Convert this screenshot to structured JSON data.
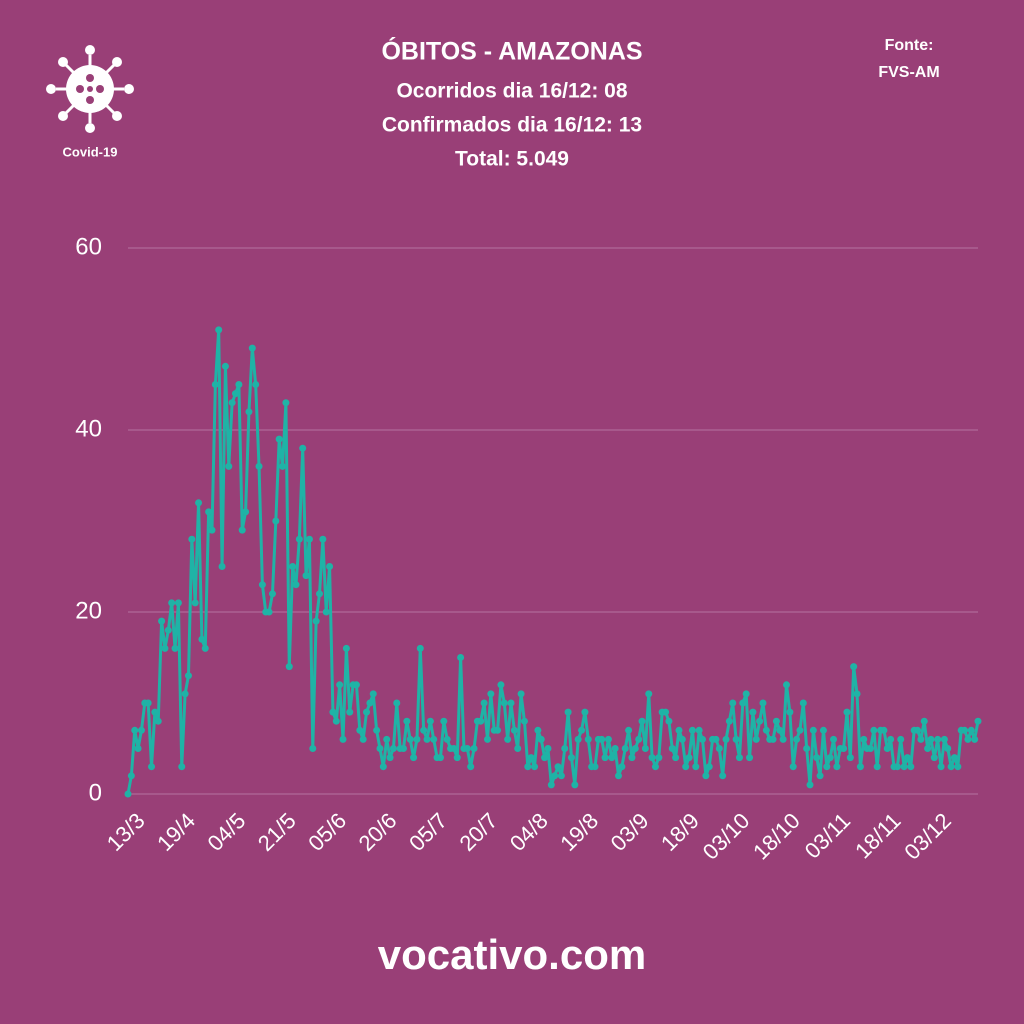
{
  "logo": {
    "label": "Covid-19"
  },
  "source": [
    "Fonte:",
    "FVS-AM"
  ],
  "footer": "vocativo.com",
  "chart_data": {
    "type": "line",
    "title": "ÓBITOS - AMAZONAS",
    "subtitles": [
      "Ocorridos dia 16/12: 08",
      "Confirmados dia 16/12: 13",
      "Total: 5.049"
    ],
    "categories": [
      "13/3",
      null,
      null,
      null,
      null,
      null,
      null,
      null,
      null,
      null,
      null,
      null,
      null,
      null,
      null,
      "19/4",
      null,
      null,
      null,
      null,
      null,
      null,
      null,
      null,
      null,
      null,
      null,
      null,
      null,
      null,
      "04/5",
      null,
      null,
      null,
      null,
      null,
      null,
      null,
      null,
      null,
      null,
      null,
      null,
      null,
      null,
      "21/5",
      null,
      null,
      null,
      null,
      null,
      null,
      null,
      null,
      null,
      null,
      null,
      null,
      null,
      null,
      "05/6",
      null,
      null,
      null,
      null,
      null,
      null,
      null,
      null,
      null,
      null,
      null,
      null,
      null,
      null,
      "20/6",
      null,
      null,
      null,
      null,
      null,
      null,
      null,
      null,
      null,
      null,
      null,
      null,
      null,
      null,
      "05/7",
      null,
      null,
      null,
      null,
      null,
      null,
      null,
      null,
      null,
      null,
      null,
      null,
      null,
      null,
      "20/7",
      null,
      null,
      null,
      null,
      null,
      null,
      null,
      null,
      null,
      null,
      null,
      null,
      null,
      null,
      "04/8",
      null,
      null,
      null,
      null,
      null,
      null,
      null,
      null,
      null,
      null,
      null,
      null,
      null,
      null,
      "19/8",
      null,
      null,
      null,
      null,
      null,
      null,
      null,
      null,
      null,
      null,
      null,
      null,
      null,
      null,
      "03/9",
      null,
      null,
      null,
      null,
      null,
      null,
      null,
      null,
      null,
      null,
      null,
      null,
      null,
      null,
      "18/9",
      null,
      null,
      null,
      null,
      null,
      null,
      null,
      null,
      null,
      null,
      null,
      null,
      null,
      null,
      "03/10",
      null,
      null,
      null,
      null,
      null,
      null,
      null,
      null,
      null,
      null,
      null,
      null,
      null,
      null,
      "18/10",
      null,
      null,
      null,
      null,
      null,
      null,
      null,
      null,
      null,
      null,
      null,
      null,
      null,
      null,
      "03/11",
      null,
      null,
      null,
      null,
      null,
      null,
      null,
      null,
      null,
      null,
      null,
      null,
      null,
      null,
      "18/11",
      null,
      null,
      null,
      null,
      null,
      null,
      null,
      null,
      null,
      null,
      null,
      null,
      null,
      null,
      "03/12",
      null,
      null,
      null,
      null,
      null,
      null,
      null,
      null,
      null,
      null,
      null,
      null,
      null
    ],
    "values": [
      0,
      2,
      7,
      5,
      7,
      10,
      10,
      3,
      9,
      8,
      19,
      16,
      18,
      21,
      16,
      21,
      3,
      11,
      13,
      28,
      21,
      32,
      17,
      16,
      31,
      29,
      45,
      51,
      25,
      47,
      36,
      43,
      44,
      45,
      29,
      31,
      42,
      49,
      45,
      36,
      23,
      20,
      20,
      22,
      30,
      39,
      36,
      43,
      14,
      25,
      23,
      28,
      38,
      24,
      28,
      5,
      19,
      22,
      28,
      20,
      25,
      9,
      8,
      12,
      6,
      16,
      9,
      12,
      12,
      7,
      6,
      9,
      10,
      11,
      7,
      5,
      3,
      6,
      4,
      5,
      10,
      5,
      5,
      8,
      6,
      4,
      6,
      16,
      7,
      6,
      8,
      6,
      4,
      4,
      8,
      6,
      5,
      5,
      4,
      15,
      5,
      5,
      3,
      5,
      8,
      8,
      10,
      6,
      11,
      7,
      7,
      12,
      10,
      6,
      10,
      7,
      5,
      11,
      8,
      3,
      4,
      3,
      7,
      6,
      4,
      5,
      1,
      2,
      3,
      2,
      5,
      9,
      4,
      1,
      6,
      7,
      9,
      6,
      3,
      3,
      6,
      6,
      4,
      6,
      4,
      5,
      2,
      3,
      5,
      7,
      4,
      5,
      6,
      8,
      5,
      11,
      4,
      3,
      4,
      9,
      9,
      8,
      5,
      4,
      7,
      6,
      3,
      4,
      7,
      3,
      7,
      6,
      2,
      3,
      6,
      6,
      5,
      2,
      6,
      8,
      10,
      6,
      4,
      10,
      11,
      4,
      9,
      6,
      8,
      10,
      7,
      6,
      6,
      8,
      7,
      6,
      12,
      9,
      3,
      6,
      7,
      10,
      5,
      1,
      7,
      4,
      2,
      7,
      3,
      4,
      6,
      3,
      5,
      5,
      9,
      4,
      14,
      11,
      3,
      6,
      5,
      5,
      7,
      3,
      7,
      7,
      5,
      6,
      3,
      3,
      6,
      3,
      4,
      3,
      7,
      7,
      6,
      8,
      5,
      6,
      4,
      6,
      3,
      6,
      5,
      3,
      4,
      3,
      7,
      7,
      6,
      7,
      6,
      8
    ],
    "color": "#1fb3a6",
    "ylim": [
      0,
      60
    ],
    "yticks": [
      0,
      20,
      40,
      60
    ],
    "grid": true
  }
}
